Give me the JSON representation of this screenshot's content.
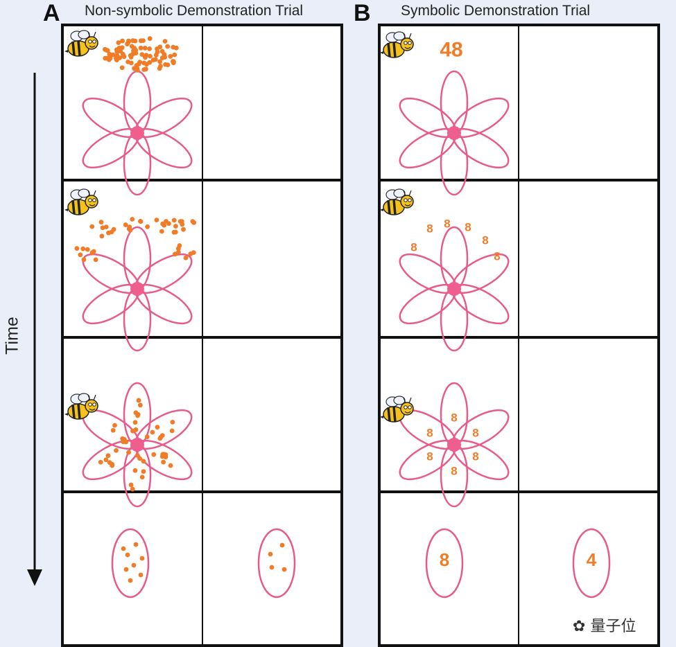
{
  "panels": {
    "a": {
      "letter": "A",
      "title": "Non-symbolic Demonstration Trial"
    },
    "b": {
      "letter": "B",
      "title": "Symbolic Demonstration Trial"
    }
  },
  "time_axis": {
    "label": "Time"
  },
  "symbolic": {
    "row1_number": "48",
    "row2_digits": [
      "8",
      "8",
      "8",
      "8",
      "8",
      "8"
    ],
    "row3_digits": [
      "8",
      "8",
      "8",
      "8",
      "8",
      "8"
    ],
    "row4_left": "8",
    "row4_right": "4"
  },
  "nonsymbolic": {
    "row4_left_dots": 8,
    "row4_right_dots": 4
  },
  "colors": {
    "petal": "#e85a8c",
    "center": "#ee5f8d",
    "dot": "#f07c27",
    "grid": "#111111",
    "bee_body": "#f4c21a"
  },
  "watermark": "量子位"
}
